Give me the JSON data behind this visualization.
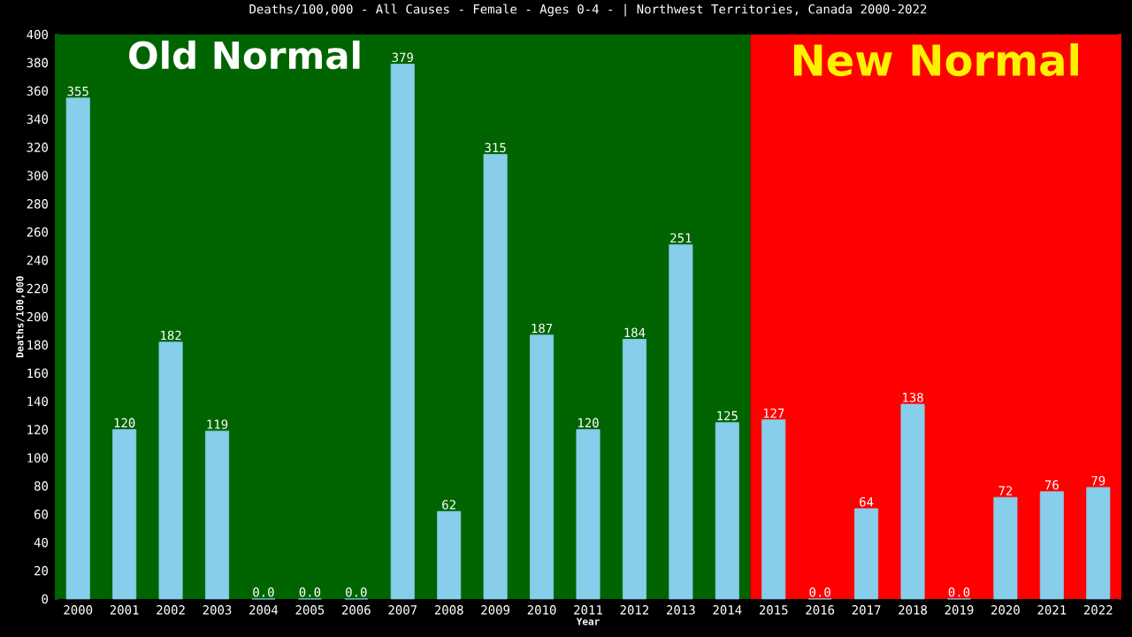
{
  "chart_data": {
    "type": "bar",
    "title": "Deaths/100,000 - All Causes - Female - Ages 0-4 -  | Northwest Territories, Canada 2000-2022",
    "xlabel": "Year",
    "ylabel": "Deaths/100,000",
    "categories": [
      "2000",
      "2001",
      "2002",
      "2003",
      "2004",
      "2005",
      "2006",
      "2007",
      "2008",
      "2009",
      "2010",
      "2011",
      "2012",
      "2013",
      "2014",
      "2015",
      "2016",
      "2017",
      "2018",
      "2019",
      "2020",
      "2021",
      "2022"
    ],
    "values": [
      355,
      120,
      182,
      119,
      0,
      0,
      0,
      379,
      62,
      315,
      187,
      120,
      184,
      251,
      125,
      127,
      0,
      64,
      138,
      0,
      72,
      76,
      79
    ],
    "value_labels": [
      "355",
      "120",
      "182",
      "119",
      "0.0",
      "0.0",
      "0.0",
      "379",
      "62",
      "315",
      "187",
      "120",
      "184",
      "251",
      "125",
      "127",
      "0.0",
      "64",
      "138",
      "0.0",
      "72",
      "76",
      "79"
    ],
    "color": "#87ceeb",
    "ylim": [
      0,
      400
    ],
    "yticks": [
      0,
      20,
      40,
      60,
      80,
      100,
      120,
      140,
      160,
      180,
      200,
      220,
      240,
      260,
      280,
      300,
      320,
      340,
      360,
      380,
      400
    ],
    "bands": [
      {
        "axis": "x",
        "from": "2000",
        "to": "2014",
        "label": "Old Normal",
        "color": "#006400"
      },
      {
        "axis": "x",
        "from": "2015",
        "to": "2022",
        "label": "New Normal",
        "color": "#ff0000"
      }
    ]
  }
}
